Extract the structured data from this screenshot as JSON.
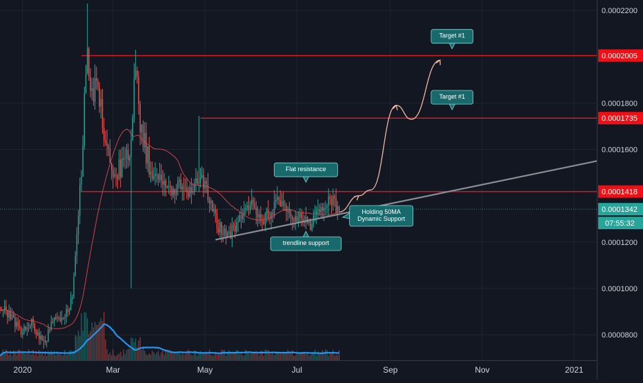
{
  "chart_data": {
    "type": "candlestick",
    "title": "",
    "xlabel": "",
    "ylabel": "",
    "ylim": [
      6.9e-05,
      0.0002245
    ],
    "y_ticks": [
      "0.0002200",
      "0.0001800",
      "0.0001600",
      "0.0001200",
      "0.0001000",
      "0.0000800"
    ],
    "x_ticks": [
      {
        "label": "2020",
        "date": "2020-01-01"
      },
      {
        "label": "Mar",
        "date": "2020-03-01"
      },
      {
        "label": "May",
        "date": "2020-05-01"
      },
      {
        "label": "Jul",
        "date": "2020-07-01"
      },
      {
        "label": "Sep",
        "date": "2020-09-01"
      },
      {
        "label": "Nov",
        "date": "2020-11-01"
      },
      {
        "label": "2021",
        "date": "2021-01-01"
      }
    ],
    "x_range": [
      "2019-12-17",
      "2021-01-16"
    ],
    "grid": true,
    "colors": {
      "background": "#131722",
      "up": "#26a69a",
      "down": "#ef5350",
      "ma": "#e0484d",
      "volume_ma": "#2196f3",
      "resistance": "#d41c23",
      "trendline": "#8a8d94",
      "projection": "#f2b8a0",
      "price_badge": "#26a69a",
      "level_badge": "#ef0f14",
      "callout": "#18696b"
    },
    "price_path": [
      [
        "2019-12-17",
        9.2e-05
      ],
      [
        "2019-12-24",
        8.8e-05
      ],
      [
        "2019-12-31",
        8.15e-05
      ],
      [
        "2020-01-07",
        8.5e-05
      ],
      [
        "2020-01-12",
        7.9e-05
      ],
      [
        "2020-01-16",
        7.7e-05
      ],
      [
        "2020-01-22",
        8.8e-05
      ],
      [
        "2020-01-28",
        8.55e-05
      ],
      [
        "2020-02-03",
        9.6e-05
      ],
      [
        "2020-02-07",
        0.00013
      ],
      [
        "2020-02-10",
        0.000165
      ],
      [
        "2020-02-13",
        0.000205
      ],
      [
        "2020-02-16",
        0.00018
      ],
      [
        "2020-02-20",
        0.00019
      ],
      [
        "2020-02-25",
        0.00016
      ],
      [
        "2020-03-02",
        0.000148
      ],
      [
        "2020-03-07",
        0.000152
      ],
      [
        "2020-03-12",
        0.00016
      ],
      [
        "2020-03-16",
        0.000195
      ],
      [
        "2020-03-19",
        0.00017
      ],
      [
        "2020-03-25",
        0.000154
      ],
      [
        "2020-04-01",
        0.000148
      ],
      [
        "2020-04-08",
        0.000142
      ],
      [
        "2020-04-15",
        0.000145
      ],
      [
        "2020-04-22",
        0.00014
      ],
      [
        "2020-04-28",
        0.00015
      ],
      [
        "2020-05-03",
        0.00014
      ],
      [
        "2020-05-10",
        0.000126
      ],
      [
        "2020-05-18",
        0.000124
      ],
      [
        "2020-05-25",
        0.00013
      ],
      [
        "2020-06-01",
        0.000138
      ],
      [
        "2020-06-07",
        0.00013
      ],
      [
        "2020-06-13",
        0.000132
      ],
      [
        "2020-06-19",
        0.000138
      ],
      [
        "2020-06-26",
        0.000131
      ],
      [
        "2020-07-03",
        0.000131
      ],
      [
        "2020-07-10",
        0.000127
      ],
      [
        "2020-07-17",
        0.000135
      ],
      [
        "2020-07-24",
        0.000138
      ],
      [
        "2020-07-29",
        0.0001342
      ]
    ],
    "price_high": 0.000223,
    "price_low": 7.4e-05,
    "current_price": "0.0001342",
    "countdown": "07:55:32",
    "levels": [
      {
        "label": "0.0002005",
        "value": 0.0002005,
        "from": "2020-02-09"
      },
      {
        "label": "0.0001735",
        "value": 0.0001735,
        "from": "2020-04-28"
      },
      {
        "label": "0.0001418",
        "value": 0.0001418,
        "from": "2020-02-09"
      }
    ],
    "trendline": {
      "from": [
        "2020-05-08",
        0.000121
      ],
      "to": [
        "2021-01-16",
        0.000155
      ]
    },
    "projection": [
      [
        "2020-07-29",
        0.000133
      ],
      [
        "2020-08-11",
        0.00014
      ],
      [
        "2020-08-19",
        0.0001425
      ],
      [
        "2020-09-05",
        0.000179
      ],
      [
        "2020-09-15",
        0.000173
      ],
      [
        "2020-10-04",
        0.0001985
      ]
    ],
    "annotations": [
      {
        "text": "Target #1",
        "x": "2020-10-12",
        "y": 0.0002088,
        "tail": "down"
      },
      {
        "text": "Target #1",
        "x": "2020-10-12",
        "y": 0.0001825,
        "tail": "down"
      },
      {
        "text": "Flat resistance",
        "x": "2020-07-07",
        "y": 0.0001512,
        "tail": "down"
      },
      {
        "text": "trendline support",
        "x": "2020-07-07",
        "y": 0.0001193,
        "tail": "up"
      },
      {
        "text": "Holding 50MA\nDynamic Support",
        "x": "2020-08-26",
        "y": 0.0001313,
        "tail": "left"
      }
    ]
  }
}
